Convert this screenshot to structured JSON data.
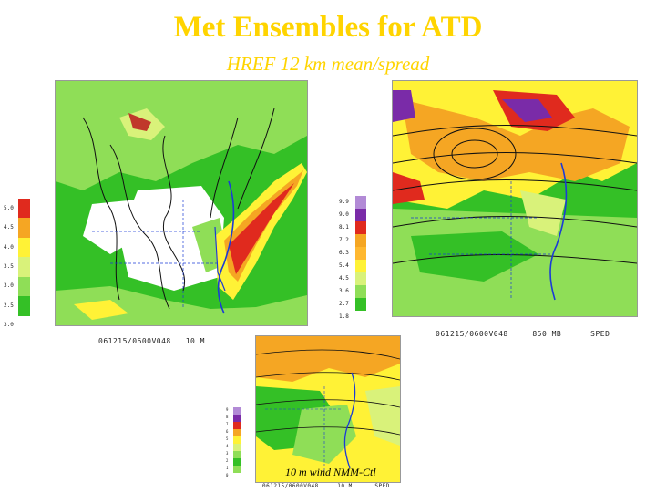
{
  "title": "Met Ensembles for ATD",
  "subtitle": "HREF 12 km mean/spread",
  "colors": {
    "title": "#ffd400",
    "green": "#34c026",
    "light_green": "#8fde57",
    "yellow": "#fff236",
    "orange": "#f5a623",
    "red": "#e02a1e",
    "purple": "#7a2ba8",
    "contour": "#111111",
    "coast": "#1b3bd6"
  },
  "panels": {
    "left": {
      "name": "10 m wind mean",
      "caption": "061215/0600V048   10 M",
      "colorbar": {
        "labels": [
          "5.0",
          "4.5",
          "4.0",
          "3.5",
          "3.0",
          "2.5",
          "3.0"
        ],
        "colors": [
          "#e02a1e",
          "#f5a623",
          "#fff236",
          "#d9f27a",
          "#8fde57",
          "#34c026",
          "#ffffff"
        ]
      }
    },
    "right": {
      "name": "850 mb wind speed",
      "caption": "061215/0600V048     850 MB      SPED",
      "colorbar": {
        "labels": [
          "9.9",
          "9.0",
          "8.1",
          "7.2",
          "6.3",
          "5.4",
          "4.5",
          "3.6",
          "2.7",
          "1.8"
        ],
        "colors": [
          "#b28ad6",
          "#7a2ba8",
          "#e02a1e",
          "#f5a623",
          "#ffb830",
          "#fff236",
          "#d9f27a",
          "#8fde57",
          "#34c026",
          "#ffffff"
        ]
      }
    },
    "bottom": {
      "name": "10m wind NMM-Ctl",
      "overlay_label": "10 m wind NMM-Ctl",
      "caption": "061215/0600V048     10 M      SPED",
      "colorbar": {
        "labels": [
          "9",
          "8",
          "7",
          "6",
          "5",
          "4",
          "3",
          "2",
          "1",
          "0"
        ],
        "colors": [
          "#b28ad6",
          "#7a2ba8",
          "#e02a1e",
          "#f5a623",
          "#fff236",
          "#d9f27a",
          "#8fde57",
          "#34c026",
          "#8fde57",
          "#ffffff"
        ]
      }
    }
  }
}
